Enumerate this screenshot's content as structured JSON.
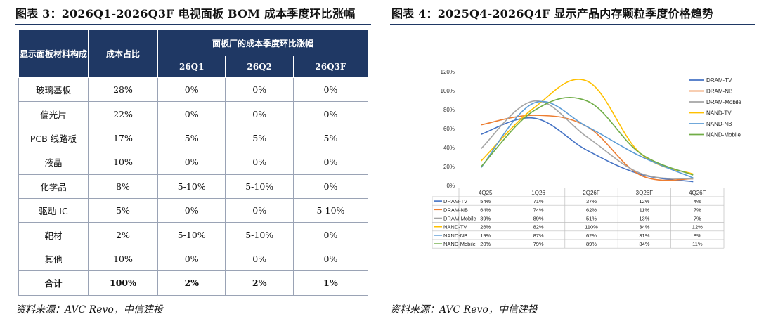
{
  "left": {
    "title": "图表 3：2026Q1-2026Q3F 电视面板 BOM 成本季度环比涨幅",
    "source": "资料来源：AVC Revo，中信建投",
    "table": {
      "header_material": "显示面板材料构成",
      "header_share": "成本占比",
      "header_group": "面板厂的成本季度环比涨幅",
      "quarters": [
        "26Q1",
        "26Q2",
        "26Q3F"
      ],
      "rows": [
        {
          "name": "玻璃基板",
          "share": "28%",
          "q1": "0%",
          "q2": "0%",
          "q3": "0%"
        },
        {
          "name": "偏光片",
          "share": "22%",
          "q1": "0%",
          "q2": "0%",
          "q3": "0%"
        },
        {
          "name": "PCB 线路板",
          "share": "17%",
          "q1": "5%",
          "q2": "5%",
          "q3": "5%"
        },
        {
          "name": "液晶",
          "share": "10%",
          "q1": "0%",
          "q2": "0%",
          "q3": "0%"
        },
        {
          "name": "化学品",
          "share": "8%",
          "q1": "5-10%",
          "q2": "5-10%",
          "q3": "0%"
        },
        {
          "name": "驱动 IC",
          "share": "5%",
          "q1": "0%",
          "q2": "0%",
          "q3": "5-10%"
        },
        {
          "name": "靶材",
          "share": "2%",
          "q1": "5-10%",
          "q2": "5-10%",
          "q3": "0%"
        },
        {
          "name": "其他",
          "share": "10%",
          "q1": "0%",
          "q2": "0%",
          "q3": "0%"
        }
      ],
      "total": {
        "name": "合计",
        "share": "100%",
        "q1": "2%",
        "q2": "2%",
        "q3": "1%"
      }
    }
  },
  "right": {
    "title": "图表 4：2025Q4-2026Q4F 显示产品内存颗粒季度价格趋势",
    "source": "资料来源：AVC Revo，中信建投"
  },
  "chart_data": {
    "type": "line",
    "title": "",
    "xlabel": "",
    "ylabel": "",
    "categories": [
      "4Q25",
      "1Q26",
      "2Q26F",
      "3Q26F",
      "4Q26F"
    ],
    "ylim": [
      0,
      120
    ],
    "yticks": [
      "0%",
      "20%",
      "40%",
      "60%",
      "80%",
      "100%",
      "120%"
    ],
    "smooth": true,
    "legend_position": "right",
    "series": [
      {
        "name": "DRAM-TV",
        "values": [
          54,
          71,
          37,
          12,
          4
        ],
        "labels": [
          "54%",
          "71%",
          "37%",
          "12%",
          "4%"
        ],
        "color": "#4472c4"
      },
      {
        "name": "DRAM-NB",
        "values": [
          64,
          74,
          62,
          11,
          7
        ],
        "labels": [
          "64%",
          "74%",
          "62%",
          "11%",
          "7%"
        ],
        "color": "#ed7d31"
      },
      {
        "name": "DRAM-Mobile",
        "values": [
          39,
          89,
          51,
          13,
          7
        ],
        "labels": [
          "39%",
          "89%",
          "51%",
          "13%",
          "7%"
        ],
        "color": "#a5a5a5"
      },
      {
        "name": "NAND-TV",
        "values": [
          26,
          82,
          110,
          34,
          12
        ],
        "labels": [
          "26%",
          "82%",
          "110%",
          "34%",
          "12%"
        ],
        "color": "#ffc000"
      },
      {
        "name": "NAND-NB",
        "values": [
          19,
          87,
          62,
          31,
          8
        ],
        "labels": [
          "19%",
          "87%",
          "62%",
          "31%",
          "8%"
        ],
        "color": "#5b9bd5"
      },
      {
        "name": "NAND-Mobile",
        "values": [
          20,
          79,
          89,
          34,
          11
        ],
        "labels": [
          "20%",
          "79%",
          "89%",
          "34%",
          "11%"
        ],
        "color": "#70ad47"
      }
    ]
  }
}
